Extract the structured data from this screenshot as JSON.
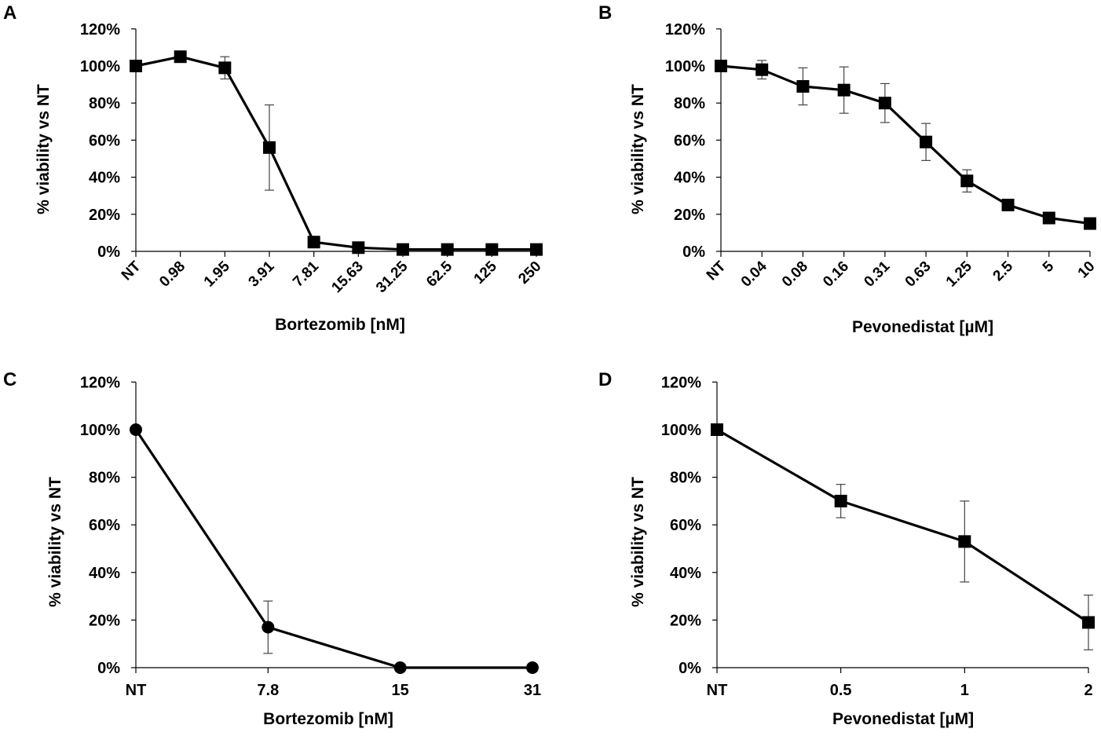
{
  "figure": {
    "line_color": "#000000",
    "background": "#ffffff"
  },
  "chart_data": [
    {
      "panel": "A",
      "type": "line",
      "marker": "square",
      "xlabel": "Bortezomib [nM]",
      "ylabel": "% viability vs NT",
      "categories": [
        "NT",
        "0.98",
        "1.95",
        "3.91",
        "7.81",
        "15.63",
        "31.25",
        "62.5",
        "125",
        "250"
      ],
      "values": [
        100,
        105,
        99,
        56,
        5,
        2,
        1,
        1,
        1,
        1
      ],
      "errors": [
        0,
        2,
        6,
        23,
        0,
        0,
        0,
        0,
        0,
        0
      ],
      "yticks": [
        "0%",
        "20%",
        "40%",
        "60%",
        "80%",
        "100%",
        "120%"
      ],
      "ylim": [
        0,
        120
      ],
      "rotated_ticks": true
    },
    {
      "panel": "B",
      "type": "line",
      "marker": "square",
      "xlabel": "Pevonedistat [µM]",
      "ylabel": "% viability vs NT",
      "categories": [
        "NT",
        "0.04",
        "0.08",
        "0.16",
        "0.31",
        "0.63",
        "1.25",
        "2.5",
        "5",
        "10"
      ],
      "values": [
        100,
        98,
        89,
        87,
        80,
        59,
        38,
        25,
        18,
        15
      ],
      "errors": [
        0,
        5,
        10,
        12.5,
        10.5,
        10,
        6,
        3,
        0,
        0
      ],
      "yticks": [
        "0%",
        "20%",
        "40%",
        "60%",
        "80%",
        "100%",
        "120%"
      ],
      "ylim": [
        0,
        120
      ],
      "rotated_ticks": true
    },
    {
      "panel": "C",
      "type": "line",
      "marker": "circle",
      "xlabel": "Bortezomib [nM]",
      "ylabel": "% viability vs NT",
      "categories": [
        "NT",
        "7.8",
        "15",
        "31"
      ],
      "values": [
        100,
        17,
        0,
        0
      ],
      "errors": [
        0,
        11,
        0,
        0
      ],
      "yticks": [
        "0%",
        "20%",
        "40%",
        "60%",
        "80%",
        "100%",
        "120%"
      ],
      "ylim": [
        0,
        120
      ],
      "rotated_ticks": false
    },
    {
      "panel": "D",
      "type": "line",
      "marker": "square",
      "xlabel": "Pevonedistat [µM]",
      "ylabel": "% viability vs NT",
      "categories": [
        "NT",
        "0.5",
        "1",
        "2"
      ],
      "values": [
        100,
        70,
        53,
        19
      ],
      "errors": [
        0,
        7,
        17,
        11.5
      ],
      "yticks": [
        "0%",
        "20%",
        "40%",
        "60%",
        "80%",
        "100%",
        "120%"
      ],
      "ylim": [
        0,
        120
      ],
      "rotated_ticks": false
    }
  ]
}
